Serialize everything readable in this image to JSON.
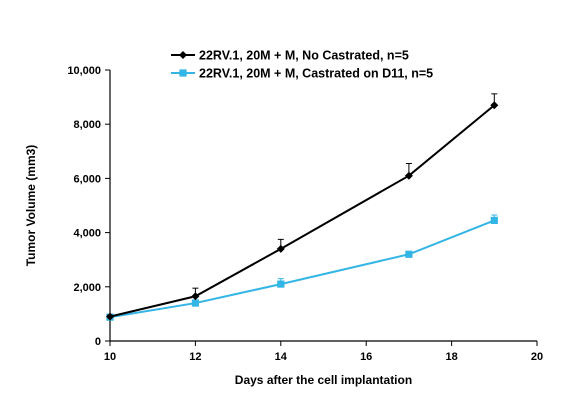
{
  "chart_data": {
    "type": "line",
    "title": "",
    "xlabel": "Days after the cell implantation",
    "ylabel": "Tumor Volume (mm3)",
    "xlim": [
      10,
      20
    ],
    "ylim": [
      0,
      10000
    ],
    "x_ticks": [
      10,
      12,
      14,
      16,
      18,
      20
    ],
    "y_ticks": [
      0,
      2000,
      4000,
      6000,
      8000,
      10000
    ],
    "y_tick_labels": [
      "0",
      "2,000",
      "4,000",
      "6,000",
      "8,000",
      "10,000"
    ],
    "grid": false,
    "legend_position": "top-center",
    "series": [
      {
        "name": "22RV.1, 20M + M,  No Castrated, n=5",
        "color": "#000000",
        "marker": "diamond",
        "x": [
          10,
          12,
          14,
          17,
          19
        ],
        "y": [
          900,
          1650,
          3400,
          6100,
          8700
        ],
        "error_up": [
          50,
          300,
          350,
          450,
          420
        ]
      },
      {
        "name": "22RV.1, 20M + M, Castrated on D11, n=5",
        "color": "#33B5E5",
        "marker": "square",
        "x": [
          10,
          12,
          14,
          17,
          19
        ],
        "y": [
          880,
          1400,
          2100,
          3200,
          4450
        ],
        "error_up": [
          40,
          60,
          200,
          80,
          200
        ]
      }
    ]
  }
}
